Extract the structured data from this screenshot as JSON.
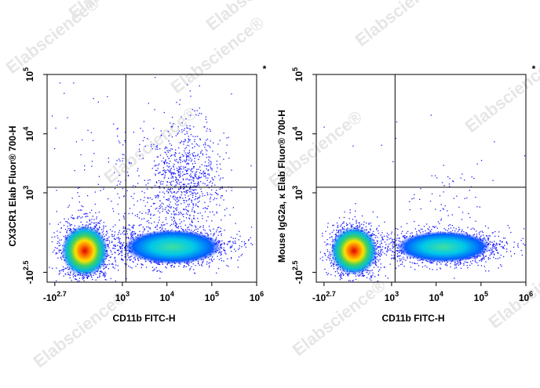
{
  "watermark": "Elabscience®",
  "chart_data": [
    {
      "type": "scatter",
      "x_label": "CD11b FITC-H",
      "y_label": "CX3CR1 Elab Fluor® 700-H",
      "marker": "*",
      "xlim": [
        -770,
        1000000
      ],
      "ylim": [
        -500,
        100000
      ],
      "xticks": [
        {
          "value": -501,
          "label": "-10",
          "exponent": "2.7"
        },
        {
          "value": 1000,
          "label": "10",
          "exponent": "3"
        },
        {
          "value": 10000,
          "label": "10",
          "exponent": "4"
        },
        {
          "value": 100000,
          "label": "10",
          "exponent": "5"
        },
        {
          "value": 1000000,
          "label": "10",
          "exponent": "6"
        }
      ],
      "yticks": [
        {
          "value": -316,
          "label": "-10",
          "exponent": "2.5"
        },
        {
          "value": 1000,
          "label": "10",
          "exponent": "3"
        },
        {
          "value": 10000,
          "label": "10",
          "exponent": "4"
        },
        {
          "value": 100000,
          "label": "10",
          "exponent": "5"
        }
      ],
      "gates": {
        "x": 1200,
        "y": 1250
      }
    },
    {
      "type": "scatter",
      "x_label": "CD11b FITC-H",
      "y_label": "Mouse IgG2a, κ Elab Fluor® 700-H",
      "marker": "*",
      "xlim": [
        -770,
        1000000
      ],
      "ylim": [
        -500,
        100000
      ],
      "xticks": [
        {
          "value": -501,
          "label": "-10",
          "exponent": "2.7"
        },
        {
          "value": 1000,
          "label": "10",
          "exponent": "3"
        },
        {
          "value": 10000,
          "label": "10",
          "exponent": "4"
        },
        {
          "value": 100000,
          "label": "10",
          "exponent": "5"
        },
        {
          "value": 1000000,
          "label": "10",
          "exponent": "6"
        }
      ],
      "yticks": [
        {
          "value": -316,
          "label": "-10",
          "exponent": "2.5"
        },
        {
          "value": 1000,
          "label": "10",
          "exponent": "3"
        },
        {
          "value": 10000,
          "label": "10",
          "exponent": "4"
        },
        {
          "value": 100000,
          "label": "10",
          "exponent": "5"
        }
      ],
      "gates": {
        "x": 1200,
        "y": 1250
      }
    }
  ]
}
